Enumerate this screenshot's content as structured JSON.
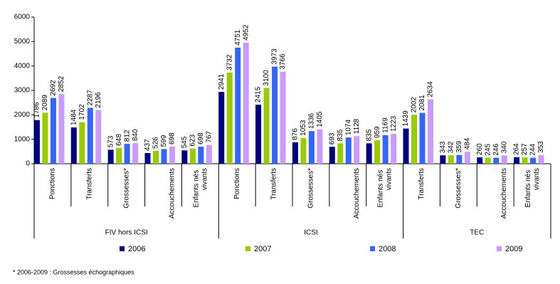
{
  "chart_data": {
    "type": "bar",
    "groups": [
      {
        "name": "FIV hors ICSI",
        "categories": [
          "Ponctions",
          "Transferts",
          "Grossesses*",
          "Accouchements",
          "Enfants nés vivants"
        ]
      },
      {
        "name": "ICSI",
        "categories": [
          "Ponctions",
          "Transferts",
          "Grossesses*",
          "Accouchements",
          "Enfants nés vivants"
        ]
      },
      {
        "name": "TEC",
        "categories": [
          "Transferts",
          "Grossesses*",
          "Accouchements",
          "Enfants nés vivants"
        ]
      }
    ],
    "series": [
      {
        "name": "2006",
        "color": "#000080",
        "values": [
          1786,
          1484,
          573,
          437,
          545,
          2941,
          2415,
          876,
          693,
          835,
          1439,
          343,
          260,
          264
        ]
      },
      {
        "name": "2007",
        "color": "#99cc00",
        "values": [
          2089,
          1702,
          648,
          526,
          623,
          3732,
          3100,
          1053,
          835,
          959,
          2002,
          342,
          245,
          257
        ]
      },
      {
        "name": "2008",
        "color": "#3366ff",
        "values": [
          2692,
          2287,
          812,
          599,
          698,
          4751,
          3973,
          1336,
          1074,
          1169,
          2081,
          359,
          246,
          244
        ]
      },
      {
        "name": "2009",
        "color": "#cc99ff",
        "values": [
          2852,
          2196,
          840,
          698,
          767,
          4952,
          3766,
          1405,
          1128,
          1223,
          2634,
          484,
          340,
          353
        ]
      }
    ],
    "ylim": [
      0,
      6000
    ],
    "yticks": [
      0,
      1000,
      2000,
      3000,
      4000,
      5000,
      6000
    ],
    "footnote": "* 2006-2009 : Grossesses échographiques"
  }
}
